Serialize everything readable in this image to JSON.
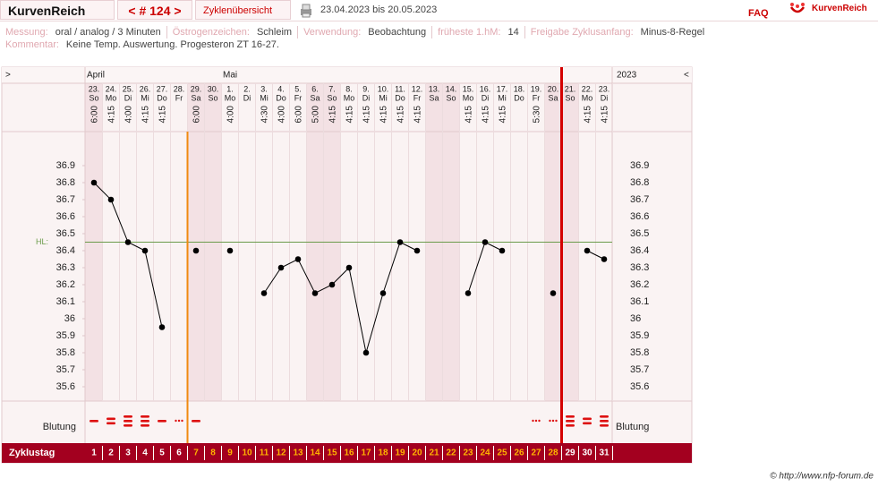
{
  "header": {
    "app_name": "KurvenReich",
    "cycle_nav": "< # 124 >",
    "tab": "Zyklenübersicht",
    "date_range": "23.04.2023 bis 20.05.2023",
    "faq": "FAQ",
    "logo": "KurvenReich"
  },
  "info": {
    "rows": [
      [
        {
          "label": "Messung:",
          "value": "oral / analog / 3 Minuten"
        },
        {
          "label": "Östrogenzeichen:",
          "value": "Schleim"
        },
        {
          "label": "Verwendung:",
          "value": "Beobachtung"
        },
        {
          "label": "früheste 1.hM:",
          "value": "14"
        },
        {
          "label": "Freigabe Zyklusanfang:",
          "value": "Minus-8-Regel"
        }
      ],
      [
        {
          "label": "Kommentar:",
          "value": "Keine Temp. Auswertung. Progesteron ZT 16-27."
        }
      ]
    ]
  },
  "chart_data": {
    "type": "line",
    "nav_prev": ">",
    "nav_next": "<",
    "year": "2023",
    "months": [
      "April",
      null,
      null,
      null,
      null,
      null,
      null,
      null,
      "Mai",
      null,
      null,
      null,
      null,
      null,
      null,
      null,
      null,
      null,
      null,
      null,
      null,
      null,
      null,
      null,
      null,
      null,
      null,
      null,
      null,
      null,
      null
    ],
    "categories": [
      "23.",
      "24.",
      "25.",
      "26.",
      "27.",
      "28.",
      "29.",
      "30.",
      "1.",
      "2.",
      "3.",
      "4.",
      "5.",
      "6.",
      "7.",
      "8.",
      "9.",
      "10.",
      "11.",
      "12.",
      "13.",
      "14.",
      "15.",
      "16.",
      "17.",
      "18.",
      "19.",
      "20.",
      "21.",
      "22.",
      "23."
    ],
    "weekdays": [
      "So",
      "Mo",
      "Di",
      "Mi",
      "Do",
      "Fr",
      "Sa",
      "So",
      "Mo",
      "Di",
      "Mi",
      "Do",
      "Fr",
      "Sa",
      "So",
      "Mo",
      "Di",
      "Mi",
      "Do",
      "Fr",
      "Sa",
      "So",
      "Mo",
      "Di",
      "Mi",
      "Do",
      "Fr",
      "Sa",
      "So",
      "Mo",
      "Di"
    ],
    "times": [
      "6:00",
      "4:15",
      "4:00",
      "4:15",
      "4:15",
      null,
      "6:00",
      null,
      "4:00",
      null,
      "4:30",
      "4:00",
      "6:00",
      "5:00",
      "4:15",
      "4:15",
      "4:15",
      "4:15",
      "4:15",
      "4:15",
      null,
      null,
      "4:15",
      "4:15",
      "4:15",
      null,
      "5:30",
      null,
      null,
      "4:15",
      "4:15"
    ],
    "values": [
      36.8,
      36.7,
      36.45,
      36.4,
      35.95,
      null,
      36.4,
      null,
      36.4,
      null,
      36.15,
      36.3,
      36.35,
      36.15,
      36.2,
      36.3,
      35.8,
      36.15,
      36.45,
      36.4,
      null,
      null,
      36.15,
      36.45,
      36.4,
      null,
      null,
      36.15,
      null,
      36.4,
      36.35
    ],
    "color": "#000000",
    "ylim": [
      35.5,
      37.1
    ],
    "yticks": [
      36.9,
      36.8,
      36.7,
      36.6,
      36.5,
      36.4,
      36.3,
      36.2,
      36.1,
      36,
      35.9,
      35.8,
      35.7,
      35.6
    ],
    "cover_line": {
      "label": "HL:",
      "value": 36.45,
      "color": "#6b9b4b"
    },
    "bleeding": {
      "label": "Blutung",
      "color": "#dd1111",
      "values": [
        1,
        2,
        3,
        3,
        1,
        0,
        1,
        null,
        null,
        null,
        null,
        null,
        null,
        null,
        null,
        null,
        null,
        null,
        null,
        null,
        null,
        null,
        null,
        null,
        null,
        null,
        0,
        0,
        3,
        2,
        3
      ]
    },
    "cycle_days": {
      "label": "Zyklustag",
      "values": [
        1,
        2,
        3,
        4,
        5,
        6,
        7,
        8,
        9,
        10,
        11,
        12,
        13,
        14,
        15,
        16,
        17,
        18,
        19,
        20,
        21,
        22,
        23,
        24,
        25,
        26,
        27,
        28,
        29,
        30,
        31
      ]
    }
  },
  "footer": "© http://www.nfp-forum.de"
}
